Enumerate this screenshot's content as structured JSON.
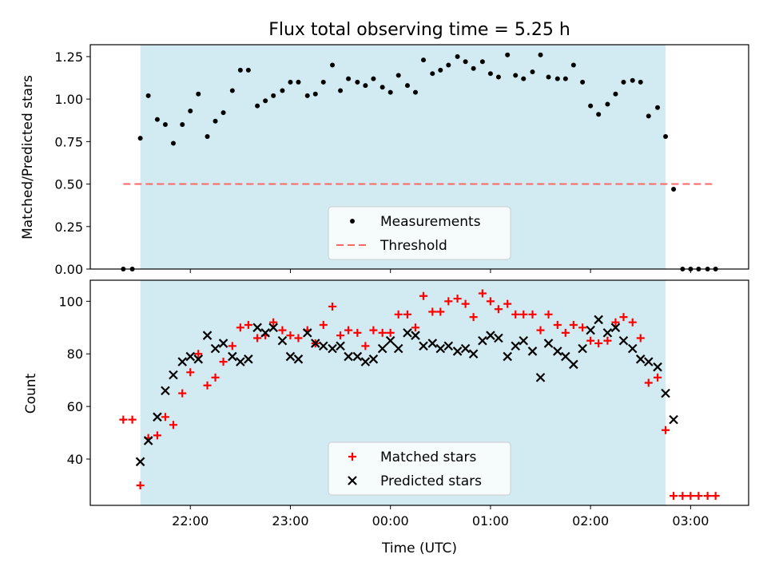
{
  "title": "Flux total observing time = 5.25 h",
  "colors": {
    "shade": "#add8e6",
    "matched": "#ff0000",
    "predicted": "#000000",
    "threshold": "#ff6666",
    "measure": "#000000"
  },
  "chart_data": [
    {
      "type": "scatter",
      "ylabel": "Matched/Predicted stars",
      "ylim": [
        0,
        1.32
      ],
      "yticks": [
        0.0,
        0.25,
        0.5,
        0.75,
        1.0,
        1.25
      ],
      "ytick_labels": [
        "0.00",
        "0.25",
        "0.50",
        "0.75",
        "1.00",
        "1.25"
      ],
      "x_hours_range": [
        21.0,
        27.58
      ],
      "observing_window_hours": [
        21.5,
        26.75
      ],
      "legend_placement": "lower center",
      "series": [
        {
          "name": "Measurements",
          "x_hours": [
            21.33,
            21.42,
            21.5,
            21.58,
            21.67,
            21.75,
            21.83,
            21.92,
            22.0,
            22.08,
            22.17,
            22.25,
            22.33,
            22.42,
            22.5,
            22.58,
            22.67,
            22.75,
            22.83,
            22.92,
            23.0,
            23.08,
            23.17,
            23.25,
            23.33,
            23.42,
            23.5,
            23.58,
            23.67,
            23.75,
            23.83,
            23.92,
            24.0,
            24.08,
            24.17,
            24.25,
            24.33,
            24.42,
            24.5,
            24.58,
            24.67,
            24.75,
            24.83,
            24.92,
            25.0,
            25.08,
            25.17,
            25.25,
            25.33,
            25.42,
            25.5,
            25.58,
            25.67,
            25.75,
            25.83,
            25.92,
            26.0,
            26.08,
            26.17,
            26.25,
            26.33,
            26.42,
            26.5,
            26.58,
            26.67,
            26.75,
            26.83,
            26.92,
            27.0,
            27.08,
            27.17,
            27.25
          ],
          "values": [
            0.0,
            0.0,
            0.77,
            1.02,
            0.88,
            0.85,
            0.74,
            0.85,
            0.93,
            1.03,
            0.78,
            0.87,
            0.92,
            1.05,
            1.17,
            1.17,
            0.96,
            0.99,
            1.02,
            1.05,
            1.1,
            1.1,
            1.02,
            1.03,
            1.1,
            1.2,
            1.05,
            1.12,
            1.1,
            1.08,
            1.12,
            1.07,
            1.04,
            1.14,
            1.08,
            1.04,
            1.23,
            1.15,
            1.17,
            1.2,
            1.25,
            1.22,
            1.18,
            1.22,
            1.15,
            1.13,
            1.26,
            1.14,
            1.12,
            1.16,
            1.26,
            1.13,
            1.12,
            1.12,
            1.2,
            1.1,
            0.96,
            0.91,
            0.97,
            1.03,
            1.1,
            1.11,
            1.1,
            0.9,
            0.95,
            0.78,
            0.47,
            0.0,
            0.0,
            0.0,
            0.0,
            0.0
          ]
        },
        {
          "name": "Threshold",
          "x_hours": [
            21.33,
            27.25
          ],
          "values": [
            0.5,
            0.5
          ]
        }
      ]
    },
    {
      "type": "scatter",
      "xlabel": "Time (UTC)",
      "ylabel": "Count",
      "ylim": [
        22.4,
        108
      ],
      "yticks": [
        40,
        60,
        80,
        100
      ],
      "ytick_labels": [
        "40",
        "60",
        "80",
        "100"
      ],
      "x_hours_range": [
        21.0,
        27.58
      ],
      "xticks_hours": [
        22,
        23,
        24,
        25,
        26,
        27
      ],
      "xtick_labels": [
        "22:00",
        "23:00",
        "00:00",
        "01:00",
        "02:00",
        "03:00"
      ],
      "observing_window_hours": [
        21.5,
        26.75
      ],
      "legend_placement": "lower center",
      "series": [
        {
          "name": "Matched stars",
          "x_hours": [
            21.33,
            21.42,
            21.5,
            21.58,
            21.67,
            21.75,
            21.83,
            21.92,
            22.0,
            22.08,
            22.17,
            22.25,
            22.33,
            22.42,
            22.5,
            22.58,
            22.67,
            22.75,
            22.83,
            22.92,
            23.0,
            23.08,
            23.17,
            23.25,
            23.33,
            23.42,
            23.5,
            23.58,
            23.67,
            23.75,
            23.83,
            23.92,
            24.0,
            24.08,
            24.17,
            24.25,
            24.33,
            24.42,
            24.5,
            24.58,
            24.67,
            24.75,
            24.83,
            24.92,
            25.0,
            25.08,
            25.17,
            25.25,
            25.33,
            25.42,
            25.5,
            25.58,
            25.67,
            25.75,
            25.83,
            25.92,
            26.0,
            26.08,
            26.17,
            26.25,
            26.33,
            26.42,
            26.5,
            26.58,
            26.67,
            26.75,
            26.83,
            26.92,
            27.0,
            27.08,
            27.17,
            27.25
          ],
          "values": [
            55,
            55,
            30,
            48,
            49,
            56,
            53,
            65,
            73,
            80,
            68,
            71,
            77,
            83,
            90,
            91,
            86,
            87,
            92,
            89,
            87,
            86,
            89,
            84,
            91,
            98,
            87,
            89,
            88,
            83,
            89,
            88,
            88,
            95,
            95,
            90,
            102,
            96,
            96,
            100,
            101,
            99,
            94,
            103,
            100,
            97,
            99,
            95,
            95,
            95,
            89,
            95,
            91,
            88,
            91,
            90,
            85,
            84,
            85,
            92,
            94,
            92,
            86,
            69,
            71,
            51,
            26,
            26,
            26,
            26,
            26,
            26
          ]
        },
        {
          "name": "Predicted stars",
          "x_hours": [
            21.5,
            21.58,
            21.67,
            21.75,
            21.83,
            21.92,
            22.0,
            22.08,
            22.17,
            22.25,
            22.33,
            22.42,
            22.5,
            22.58,
            22.67,
            22.75,
            22.83,
            22.92,
            23.0,
            23.08,
            23.17,
            23.25,
            23.33,
            23.42,
            23.5,
            23.58,
            23.67,
            23.75,
            23.83,
            23.92,
            24.0,
            24.08,
            24.17,
            24.25,
            24.33,
            24.42,
            24.5,
            24.58,
            24.67,
            24.75,
            24.83,
            24.92,
            25.0,
            25.08,
            25.17,
            25.25,
            25.33,
            25.42,
            25.5,
            25.58,
            25.67,
            25.75,
            25.83,
            25.92,
            26.0,
            26.08,
            26.17,
            26.25,
            26.33,
            26.42,
            26.5,
            26.58,
            26.67,
            26.75,
            26.83
          ],
          "values": [
            39,
            47,
            56,
            66,
            72,
            77,
            79,
            78,
            87,
            82,
            84,
            79,
            77,
            78,
            90,
            88,
            90,
            85,
            79,
            78,
            88,
            84,
            83,
            82,
            83,
            79,
            79,
            77,
            78,
            82,
            85,
            82,
            88,
            87,
            83,
            84,
            82,
            83,
            81,
            82,
            80,
            85,
            87,
            86,
            79,
            83,
            85,
            81,
            71,
            84,
            81,
            79,
            76,
            82,
            89,
            93,
            88,
            90,
            85,
            82,
            78,
            77,
            75,
            65,
            55
          ]
        }
      ]
    }
  ]
}
